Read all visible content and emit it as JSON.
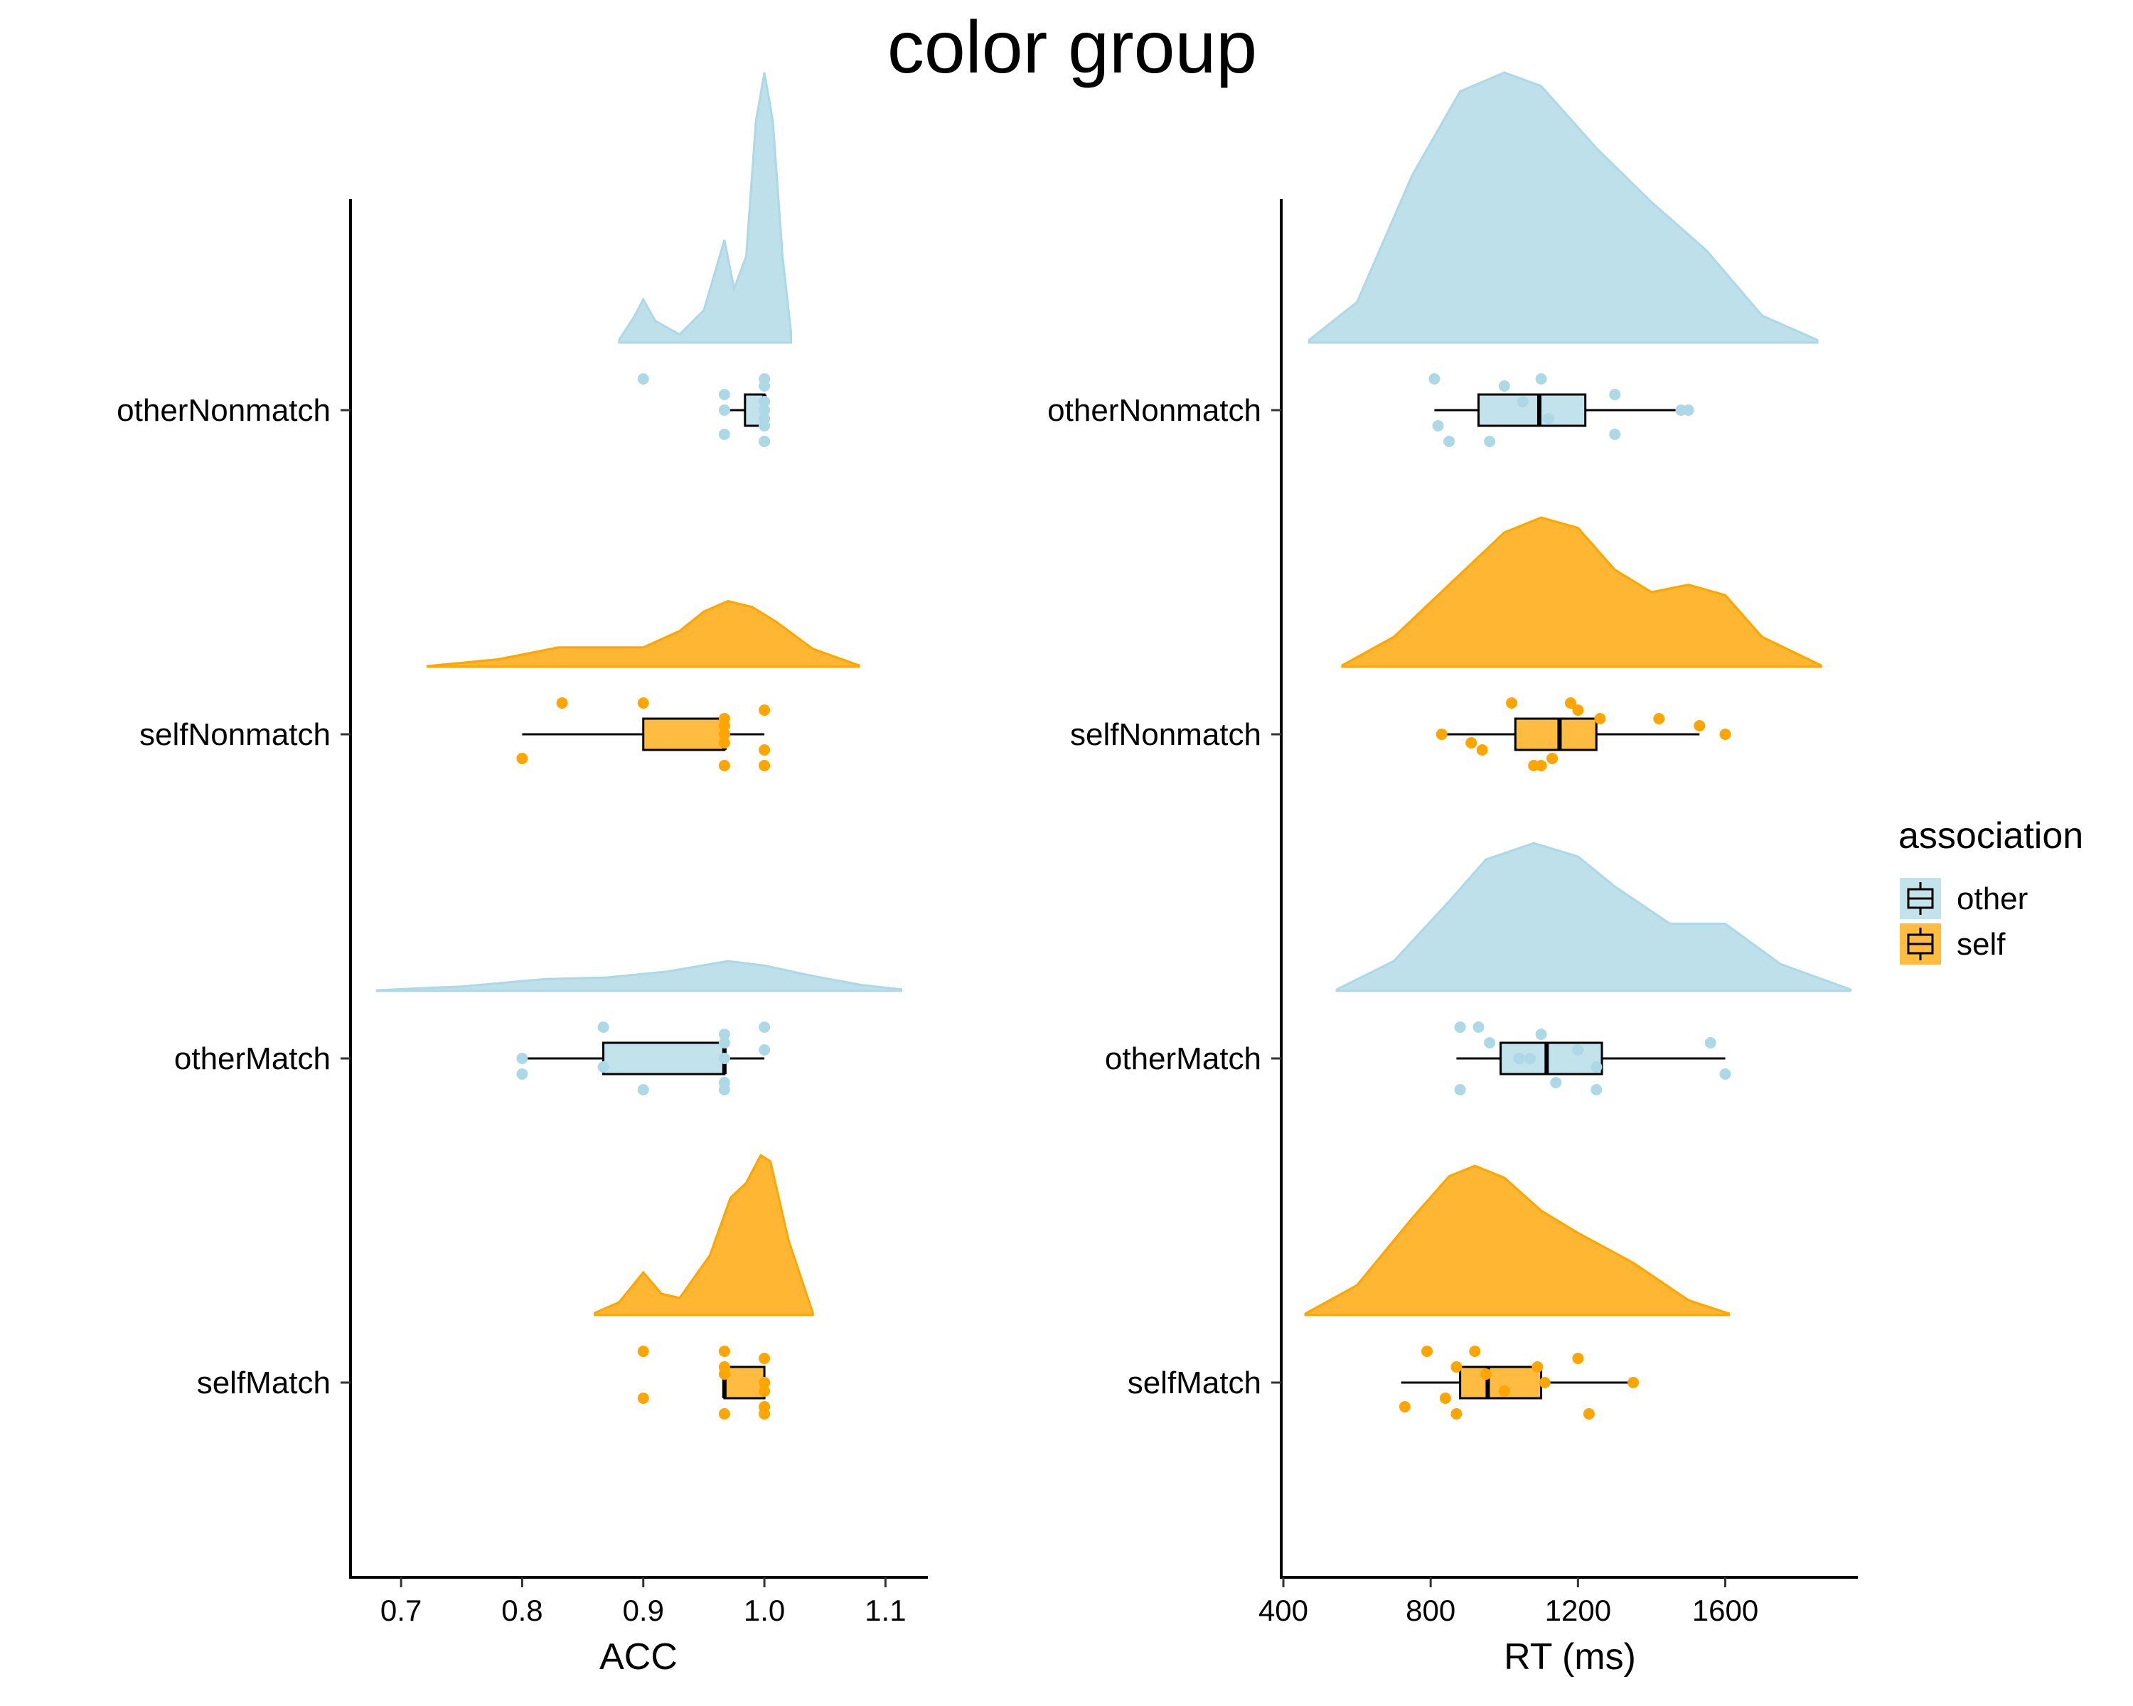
{
  "chart_data": {
    "title": "color group",
    "type": "raincloud",
    "categories": [
      "otherNonmatch",
      "selfNonmatch",
      "otherMatch",
      "selfMatch"
    ],
    "legend": {
      "title": "association",
      "placement": "right",
      "items": [
        {
          "name": "other",
          "color": "#add8e6"
        },
        {
          "name": "self",
          "color": "#ffa500"
        }
      ]
    },
    "panels": [
      {
        "name": "acc",
        "xlabel": "ACC",
        "xlim": [
          0.66,
          1.135
        ],
        "xticks": [
          0.7,
          0.8,
          0.9,
          1.0,
          1.1
        ],
        "xtick_labels": [
          "0.7",
          "0.8",
          "0.9",
          "1.0",
          "1.1"
        ],
        "groups": [
          {
            "category": "otherNonmatch",
            "association": "other",
            "box": {
              "min": 0.967,
              "q1": 0.984,
              "median": 1.0,
              "q3": 1.0,
              "max": 1.0
            },
            "density": [
              [
                0.88,
                0.01
              ],
              [
                0.893,
                0.1
              ],
              [
                0.9,
                0.16
              ],
              [
                0.91,
                0.08
              ],
              [
                0.93,
                0.03
              ],
              [
                0.95,
                0.12
              ],
              [
                0.967,
                0.38
              ],
              [
                0.975,
                0.2
              ],
              [
                0.985,
                0.32
              ],
              [
                0.993,
                0.82
              ],
              [
                1.0,
                1.0
              ],
              [
                1.007,
                0.82
              ],
              [
                1.015,
                0.32
              ],
              [
                1.022,
                0.04
              ]
            ],
            "points": [
              0.9,
              0.967,
              0.967,
              1.0,
              1.0,
              1.0,
              1.0,
              1.0,
              0.967,
              1.0,
              1.0,
              1.0
            ]
          },
          {
            "category": "selfNonmatch",
            "association": "self",
            "box": {
              "min": 0.8,
              "q1": 0.9,
              "median": 0.967,
              "q3": 0.967,
              "max": 1.0
            },
            "density": [
              [
                0.722,
                0.005
              ],
              [
                0.78,
                0.05
              ],
              [
                0.83,
                0.13
              ],
              [
                0.87,
                0.13
              ],
              [
                0.9,
                0.13
              ],
              [
                0.93,
                0.24
              ],
              [
                0.95,
                0.37
              ],
              [
                0.97,
                0.44
              ],
              [
                0.99,
                0.4
              ],
              [
                1.01,
                0.3
              ],
              [
                1.04,
                0.12
              ],
              [
                1.078,
                0.01
              ]
            ],
            "points": [
              0.9,
              0.967,
              0.967,
              1.0,
              1.0,
              1.0,
              0.967,
              0.967,
              0.8,
              0.833,
              0.967,
              0.967
            ]
          },
          {
            "category": "otherMatch",
            "association": "other",
            "box": {
              "min": 0.8,
              "q1": 0.867,
              "median": 0.967,
              "q3": 0.967,
              "max": 1.0
            },
            "density": [
              [
                0.68,
                0.005
              ],
              [
                0.75,
                0.03
              ],
              [
                0.82,
                0.08
              ],
              [
                0.87,
                0.09
              ],
              [
                0.92,
                0.13
              ],
              [
                0.97,
                0.2
              ],
              [
                1.0,
                0.17
              ],
              [
                1.04,
                0.1
              ],
              [
                1.08,
                0.04
              ],
              [
                1.113,
                0.01
              ]
            ],
            "points": [
              0.867,
              0.967,
              0.967,
              0.8,
              0.9,
              0.967,
              1.0,
              0.867,
              0.967,
              1.0,
              0.8,
              0.967
            ]
          },
          {
            "category": "selfMatch",
            "association": "self",
            "box": {
              "min": 0.967,
              "q1": 0.967,
              "median": 0.967,
              "q3": 1.0,
              "max": 1.0
            },
            "density": [
              [
                0.86,
                0.01
              ],
              [
                0.88,
                0.06
              ],
              [
                0.9,
                0.2
              ],
              [
                0.915,
                0.1
              ],
              [
                0.93,
                0.08
              ],
              [
                0.955,
                0.28
              ],
              [
                0.972,
                0.55
              ],
              [
                0.985,
                0.62
              ],
              [
                0.997,
                0.75
              ],
              [
                1.005,
                0.72
              ],
              [
                1.02,
                0.35
              ],
              [
                1.04,
                0.01
              ]
            ],
            "points": [
              0.9,
              0.967,
              1.0,
              0.9,
              0.967,
              1.0,
              0.967,
              1.0,
              1.0,
              0.967,
              1.0,
              1.0
            ]
          }
        ]
      },
      {
        "name": "rt",
        "xlabel": "RT (ms)",
        "xlim": [
          400,
          1960
        ],
        "xticks": [
          400,
          800,
          1200,
          1600
        ],
        "xtick_labels": [
          "400",
          "800",
          "1200",
          "1600"
        ],
        "groups": [
          {
            "category": "otherNonmatch",
            "association": "other",
            "box": {
              "min": 810,
              "q1": 930,
              "median": 1095,
              "q3": 1220,
              "max": 1500
            },
            "density": [
              [
                470,
                0.01
              ],
              [
                600,
                0.15
              ],
              [
                750,
                0.62
              ],
              [
                880,
                0.93
              ],
              [
                1000,
                1.0
              ],
              [
                1100,
                0.95
              ],
              [
                1250,
                0.72
              ],
              [
                1400,
                0.52
              ],
              [
                1550,
                0.34
              ],
              [
                1700,
                0.1
              ],
              [
                1850,
                0.01
              ]
            ],
            "points": [
              1100,
              1300,
              1500,
              820,
              850,
              1000,
              1050,
              1120,
              1300,
              810,
              1480,
              960
            ]
          },
          {
            "category": "selfNonmatch",
            "association": "self",
            "box": {
              "min": 830,
              "q1": 1030,
              "median": 1150,
              "q3": 1250,
              "max": 1530
            },
            "density": [
              [
                560,
                0.01
              ],
              [
                700,
                0.2
              ],
              [
                850,
                0.55
              ],
              [
                1000,
                0.9
              ],
              [
                1100,
                1.0
              ],
              [
                1200,
                0.93
              ],
              [
                1300,
                0.65
              ],
              [
                1400,
                0.5
              ],
              [
                1500,
                0.55
              ],
              [
                1600,
                0.48
              ],
              [
                1700,
                0.2
              ],
              [
                1860,
                0.01
              ]
            ],
            "points": [
              1020,
              1260,
              1600,
              940,
              1080,
              1200,
              1530,
              910,
              1130,
              1180,
              830,
              1100,
              1420
            ]
          },
          {
            "category": "otherMatch",
            "association": "other",
            "box": {
              "min": 870,
              "q1": 990,
              "median": 1115,
              "q3": 1265,
              "max": 1600
            },
            "density": [
              [
                545,
                0.01
              ],
              [
                700,
                0.2
              ],
              [
                850,
                0.6
              ],
              [
                950,
                0.88
              ],
              [
                1080,
                0.99
              ],
              [
                1200,
                0.9
              ],
              [
                1300,
                0.7
              ],
              [
                1450,
                0.45
              ],
              [
                1600,
                0.45
              ],
              [
                1750,
                0.18
              ],
              [
                1940,
                0.01
              ]
            ],
            "points": [
              930,
              960,
              1040,
              1600,
              880,
              1100,
              1200,
              1250,
              1140,
              880,
              1070,
              1250,
              1560
            ]
          },
          {
            "category": "selfMatch",
            "association": "self",
            "box": {
              "min": 720,
              "q1": 880,
              "median": 955,
              "q3": 1100,
              "max": 1350
            },
            "density": [
              [
                460,
                0.01
              ],
              [
                600,
                0.2
              ],
              [
                750,
                0.65
              ],
              [
                850,
                0.93
              ],
              [
                920,
                1.0
              ],
              [
                1000,
                0.92
              ],
              [
                1100,
                0.7
              ],
              [
                1200,
                0.55
              ],
              [
                1350,
                0.35
              ],
              [
                1500,
                0.1
              ],
              [
                1610,
                0.01
              ]
            ],
            "points": [
              790,
              1090,
              1350,
              840,
              870,
              1200,
              950,
              1000,
              730,
              920,
              1110,
              1230,
              870
            ]
          }
        ]
      }
    ]
  }
}
